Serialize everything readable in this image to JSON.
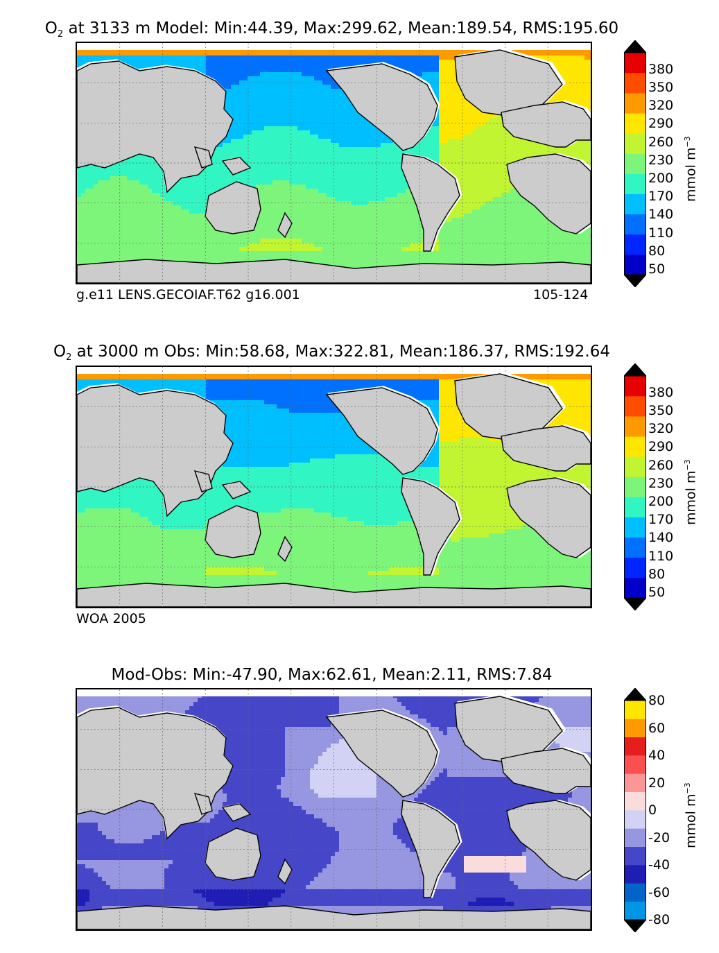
{
  "panels": [
    {
      "title_pre": "O",
      "title_sub": "2",
      "title_rest": " at 3133 m Model: Min:44.39, Max:299.62, Mean:189.54, RMS:195.60",
      "left_label": "g.e11 LENS.GECOIAF.T62 g16.001",
      "right_label": "105-124",
      "colorbar": {
        "ticks": [
          "380",
          "350",
          "320",
          "290",
          "260",
          "230",
          "200",
          "170",
          "140",
          "110",
          "80",
          "50"
        ],
        "unit": "mmol m",
        "unit_sup": "−3",
        "colors": [
          "#00007f",
          "#0000c8",
          "#0026ff",
          "#0070ff",
          "#00bfff",
          "#31f5c2",
          "#7df57a",
          "#c2f531",
          "#ffe600",
          "#ff9900",
          "#ff4d00",
          "#e60000",
          "#7f0000"
        ]
      }
    },
    {
      "title_pre": "O",
      "title_sub": "2",
      "title_rest": " at 3000 m Obs: Min:58.68, Max:322.81, Mean:186.37, RMS:192.64",
      "left_label": "WOA 2005",
      "right_label": "",
      "colorbar": {
        "ticks": [
          "380",
          "350",
          "320",
          "290",
          "260",
          "230",
          "200",
          "170",
          "140",
          "110",
          "80",
          "50"
        ],
        "unit": "mmol m",
        "unit_sup": "−3",
        "colors": [
          "#00007f",
          "#0000c8",
          "#0026ff",
          "#0070ff",
          "#00bfff",
          "#31f5c2",
          "#7df57a",
          "#c2f531",
          "#ffe600",
          "#ff9900",
          "#ff4d00",
          "#e60000",
          "#7f0000"
        ]
      }
    },
    {
      "title_pre": "",
      "title_sub": "",
      "title_rest": "Mod-Obs: Min:-47.90, Max:62.61, Mean:2.11, RMS:7.84",
      "left_label": "",
      "right_label": "",
      "colorbar": {
        "ticks": [
          "80",
          "60",
          "40",
          "20",
          "0",
          "-20",
          "-40",
          "-60",
          "-80"
        ],
        "unit": "mmol m",
        "unit_sup": "−3",
        "colors": [
          "#00f5ff",
          "#0096e6",
          "#0064c8",
          "#1e1eb4",
          "#4646c8",
          "#9696e1",
          "#d2d2f5",
          "#fadcdc",
          "#fa9696",
          "#fa5050",
          "#e61e1e",
          "#ff9900",
          "#ffe600",
          "#ffff66"
        ]
      }
    }
  ],
  "chart_data": [
    {
      "type": "heatmap",
      "title": "O2 at 3133 m Model: Min:44.39, Max:299.62, Mean:189.54, RMS:195.60",
      "colorbar_label": "mmol m−3",
      "levels": [
        50,
        80,
        110,
        140,
        170,
        200,
        230,
        260,
        290,
        320,
        350,
        380
      ],
      "min": 44.39,
      "max": 299.62,
      "mean": 189.54,
      "rms": 195.6,
      "regions": {
        "north_pacific": 125,
        "equatorial_pacific": 155,
        "south_pacific": 185,
        "indian_ocean": 165,
        "north_atlantic": 275,
        "south_atlantic": 245,
        "southern_ocean": 215,
        "arctic_fringe": 300
      }
    },
    {
      "type": "heatmap",
      "title": "O2 at 3000 m Obs: Min:58.68, Max:322.81, Mean:186.37, RMS:192.64",
      "colorbar_label": "mmol m−3",
      "levels": [
        50,
        80,
        110,
        140,
        170,
        200,
        230,
        260,
        290,
        320,
        350,
        380
      ],
      "min": 58.68,
      "max": 322.81,
      "mean": 186.37,
      "rms": 192.64,
      "regions": {
        "north_pacific": 125,
        "equatorial_pacific": 150,
        "south_pacific": 180,
        "indian_ocean": 160,
        "north_atlantic": 270,
        "south_atlantic": 235,
        "southern_ocean": 225,
        "arctic_fringe": 300
      }
    },
    {
      "type": "heatmap",
      "title": "Mod-Obs: Min:-47.90, Max:62.61, Mean:2.11, RMS:7.84",
      "colorbar_label": "mmol m−3",
      "levels": [
        -80,
        -60,
        -40,
        -20,
        0,
        20,
        40,
        60,
        80
      ],
      "min": -47.9,
      "max": 62.61,
      "mean": 2.11,
      "rms": 7.84,
      "regions": {
        "north_pacific": 15,
        "equatorial_pacific": 5,
        "south_pacific": 5,
        "indian_ocean": -5,
        "north_atlantic": 15,
        "south_atlantic_anomaly": 45,
        "southern_ocean": -15
      }
    }
  ]
}
